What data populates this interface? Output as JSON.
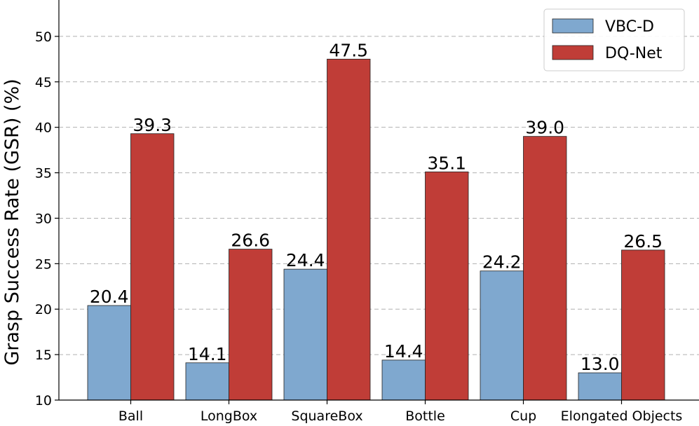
{
  "chart_data": {
    "type": "bar",
    "categories": [
      "Ball",
      "LongBox",
      "SquareBox",
      "Bottle",
      "Cup",
      "Elongated Objects"
    ],
    "series": [
      {
        "name": "VBC-D",
        "color": "#7fa8cf",
        "values": [
          20.4,
          14.1,
          24.4,
          14.4,
          24.2,
          13.0
        ]
      },
      {
        "name": "DQ-Net",
        "color": "#c03d37",
        "values": [
          39.3,
          26.6,
          47.5,
          35.1,
          39.0,
          26.5
        ]
      }
    ],
    "ylabel": "Grasp Success Rate (GSR) (%)",
    "xlabel": "",
    "ylim": [
      10,
      54
    ],
    "yticks": [
      10,
      15,
      20,
      25,
      30,
      35,
      40,
      45,
      50
    ],
    "grid": true,
    "legend": "top-right"
  }
}
